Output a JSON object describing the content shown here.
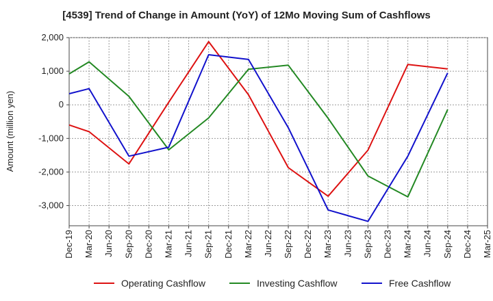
{
  "chart_data": {
    "type": "line",
    "title": "[4539]  Trend of Change in Amount (YoY) of 12Mo Moving Sum of Cashflows",
    "ylabel": "Amount (million yen)",
    "xlabel": "",
    "ylim": [
      -3600,
      2000
    ],
    "yticks": [
      2000,
      1000,
      0,
      -1000,
      -2000,
      -3000
    ],
    "ytick_labels": [
      "2,000",
      "1,000",
      "0",
      "-1,000",
      "-2,000",
      "-3,000"
    ],
    "categories": [
      "Dec-19",
      "Mar-20",
      "Jun-20",
      "Sep-20",
      "Dec-20",
      "Mar-21",
      "Jun-21",
      "Sep-21",
      "Dec-21",
      "Mar-22",
      "Jun-22",
      "Sep-22",
      "Dec-22",
      "Mar-23",
      "Jun-23",
      "Sep-23",
      "Dec-23",
      "Mar-24",
      "Jun-24",
      "Sep-24",
      "Dec-24",
      "Mar-25"
    ],
    "grid": true,
    "legend_position": "bottom",
    "series": [
      {
        "name": "Operating Cashflow",
        "color": "#dd1111",
        "points": [
          [
            0,
            -600
          ],
          [
            1,
            -800
          ],
          [
            3,
            -1760
          ],
          [
            5,
            80
          ],
          [
            7,
            1880
          ],
          [
            9,
            300
          ],
          [
            11,
            -1870
          ],
          [
            13,
            -2720
          ],
          [
            15,
            -1350
          ],
          [
            17,
            1200
          ],
          [
            19,
            1070
          ]
        ]
      },
      {
        "name": "Investing Cashflow",
        "color": "#228822",
        "points": [
          [
            0,
            920
          ],
          [
            1,
            1280
          ],
          [
            3,
            250
          ],
          [
            5,
            -1340
          ],
          [
            7,
            -390
          ],
          [
            9,
            1060
          ],
          [
            11,
            1180
          ],
          [
            13,
            -400
          ],
          [
            15,
            -2120
          ],
          [
            17,
            -2740
          ],
          [
            19,
            -140
          ]
        ]
      },
      {
        "name": "Free Cashflow",
        "color": "#1111cc",
        "points": [
          [
            0,
            330
          ],
          [
            1,
            480
          ],
          [
            3,
            -1530
          ],
          [
            5,
            -1260
          ],
          [
            7,
            1490
          ],
          [
            9,
            1350
          ],
          [
            11,
            -680
          ],
          [
            13,
            -3130
          ],
          [
            15,
            -3470
          ],
          [
            17,
            -1530
          ],
          [
            19,
            950
          ]
        ]
      }
    ]
  }
}
